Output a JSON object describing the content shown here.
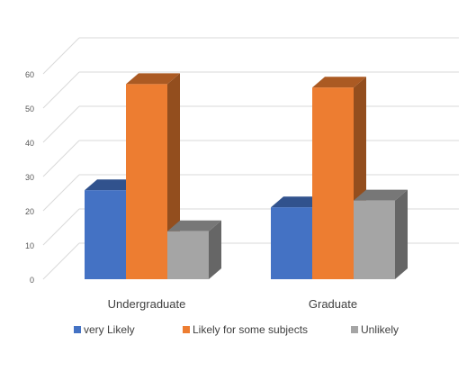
{
  "chart_data": {
    "type": "bar",
    "style": "3d-clustered-column",
    "categories": [
      "Undergraduate",
      "Graduate"
    ],
    "series": [
      {
        "name": "very Likely",
        "values": [
          26,
          21
        ],
        "color": "#4472C4"
      },
      {
        "name": "Likely for some subjects",
        "values": [
          57,
          56
        ],
        "color": "#ED7D31"
      },
      {
        "name": "Unlikely",
        "values": [
          14,
          23
        ],
        "color": "#A5A5A5"
      }
    ],
    "yticks": [
      "0",
      "10",
      "20",
      "30",
      "40",
      "50",
      "60"
    ],
    "ylim": [
      0,
      60
    ],
    "grid": true,
    "legend": "bottom"
  }
}
